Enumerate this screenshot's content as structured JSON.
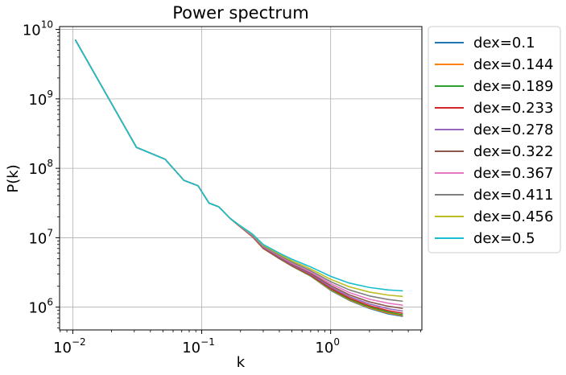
{
  "chart_data": {
    "type": "line",
    "title": "Power spectrum",
    "xlabel": "k",
    "ylabel": "P(k)",
    "xscale": "log",
    "yscale": "log",
    "xlim": [
      0.0079,
      5.1
    ],
    "ylim": [
      470000,
      11000000000
    ],
    "grid": true,
    "legend_position": "outside-right",
    "x_ticks": [
      {
        "value": 0.01,
        "base": "10",
        "exp": "−2"
      },
      {
        "value": 0.1,
        "base": "10",
        "exp": "−1"
      },
      {
        "value": 1,
        "base": "10",
        "exp": "0"
      }
    ],
    "y_ticks": [
      {
        "value": 1000000,
        "base": "10",
        "exp": "6"
      },
      {
        "value": 10000000,
        "base": "10",
        "exp": "7"
      },
      {
        "value": 100000000,
        "base": "10",
        "exp": "8"
      },
      {
        "value": 1000000000,
        "base": "10",
        "exp": "9"
      },
      {
        "value": 10000000000,
        "base": "10",
        "exp": "10"
      }
    ],
    "x": [
      0.0105,
      0.0312,
      0.052,
      0.0728,
      0.0937,
      0.114,
      0.135,
      0.166,
      0.198,
      0.249,
      0.3,
      0.4,
      0.5,
      0.7,
      1.0,
      1.4,
      2.0,
      2.8,
      3.6
    ],
    "series": [
      {
        "name": "dex=0.1",
        "color": "#1f77b4",
        "values": [
          7000000000.0,
          200000000.0,
          135000000.0,
          67000000.0,
          56000000.0,
          31500000.0,
          28000000.0,
          19000000.0,
          14500000.0,
          10200000.0,
          7000000.0,
          5000000.0,
          3900000.0,
          2800000.0,
          1750000.0,
          1250000.0,
          960000.0,
          800000.0,
          740000.0
        ]
      },
      {
        "name": "dex=0.144",
        "color": "#ff7f0e",
        "values": [
          7000000000.0,
          200000000.0,
          135000000.0,
          67000000.0,
          56000000.0,
          31500000.0,
          28000000.0,
          19000000.0,
          14500000.0,
          10200000.0,
          7000000.0,
          5020000.0,
          3920000.0,
          2820000.0,
          1780000.0,
          1270000.0,
          980000.0,
          820000.0,
          760000.0
        ]
      },
      {
        "name": "dex=0.189",
        "color": "#2ca02c",
        "values": [
          7000000000.0,
          200000000.0,
          135000000.0,
          67000000.0,
          56000000.0,
          31500000.0,
          28000000.0,
          19000000.0,
          14500000.0,
          10300000.0,
          7050000.0,
          5050000.0,
          3950000.0,
          2850000.0,
          1820000.0,
          1300000.0,
          1010000.0,
          850000.0,
          780000.0
        ]
      },
      {
        "name": "dex=0.233",
        "color": "#d62728",
        "values": [
          7000000000.0,
          200000000.0,
          135000000.0,
          67000000.0,
          56000000.0,
          31500000.0,
          28000000.0,
          19000000.0,
          14500000.0,
          10300000.0,
          7100000.0,
          5100000.0,
          4000000.0,
          2900000.0,
          1870000.0,
          1350000.0,
          1050000.0,
          890000.0,
          820000.0
        ]
      },
      {
        "name": "dex=0.278",
        "color": "#9467bd",
        "values": [
          7000000000.0,
          200000000.0,
          135000000.0,
          67000000.0,
          56000000.0,
          31500000.0,
          28000000.0,
          19000000.0,
          14600000.0,
          10400000.0,
          7200000.0,
          5200000.0,
          4080000.0,
          2980000.0,
          1950000.0,
          1420000.0,
          1110000.0,
          950000.0,
          880000.0
        ]
      },
      {
        "name": "dex=0.322",
        "color": "#8c564b",
        "values": [
          7000000000.0,
          200000000.0,
          135000000.0,
          67000000.0,
          56000000.0,
          31500000.0,
          28000000.0,
          19000000.0,
          14600000.0,
          10500000.0,
          7300000.0,
          5300000.0,
          4180000.0,
          3080000.0,
          2050000.0,
          1500000.0,
          1190000.0,
          1030000.0,
          960000.0
        ]
      },
      {
        "name": "dex=0.367",
        "color": "#e377c2",
        "values": [
          7000000000.0,
          200000000.0,
          135000000.0,
          67000000.0,
          56000000.0,
          31500000.0,
          28000000.0,
          19000000.0,
          14700000.0,
          10600000.0,
          7450000.0,
          5450000.0,
          4300000.0,
          3200000.0,
          2180000.0,
          1620000.0,
          1300000.0,
          1140000.0,
          1070000.0
        ]
      },
      {
        "name": "dex=0.411",
        "color": "#7f7f7f",
        "values": [
          7000000000.0,
          200000000.0,
          135000000.0,
          67000000.0,
          56000000.0,
          31500000.0,
          28000000.0,
          19000000.0,
          14800000.0,
          10800000.0,
          7600000.0,
          5600000.0,
          4450000.0,
          3350000.0,
          2330000.0,
          1770000.0,
          1450000.0,
          1290000.0,
          1220000.0
        ]
      },
      {
        "name": "dex=0.456",
        "color": "#bcbd22",
        "values": [
          7000000000.0,
          200000000.0,
          135000000.0,
          67000000.0,
          56000000.0,
          31500000.0,
          28000000.0,
          19000000.0,
          14900000.0,
          11000000.0,
          7800000.0,
          5800000.0,
          4650000.0,
          3550000.0,
          2520000.0,
          1960000.0,
          1650000.0,
          1490000.0,
          1430000.0
        ]
      },
      {
        "name": "dex=0.5",
        "color": "#17becf",
        "values": [
          7000000000.0,
          200000000.0,
          135000000.0,
          67000000.0,
          56000000.0,
          31500000.0,
          28000000.0,
          19000000.0,
          15000000.0,
          11200000.0,
          8000000.0,
          6000000.0,
          4900000.0,
          3800000.0,
          2780000.0,
          2220000.0,
          1920000.0,
          1770000.0,
          1720000.0
        ]
      }
    ]
  }
}
